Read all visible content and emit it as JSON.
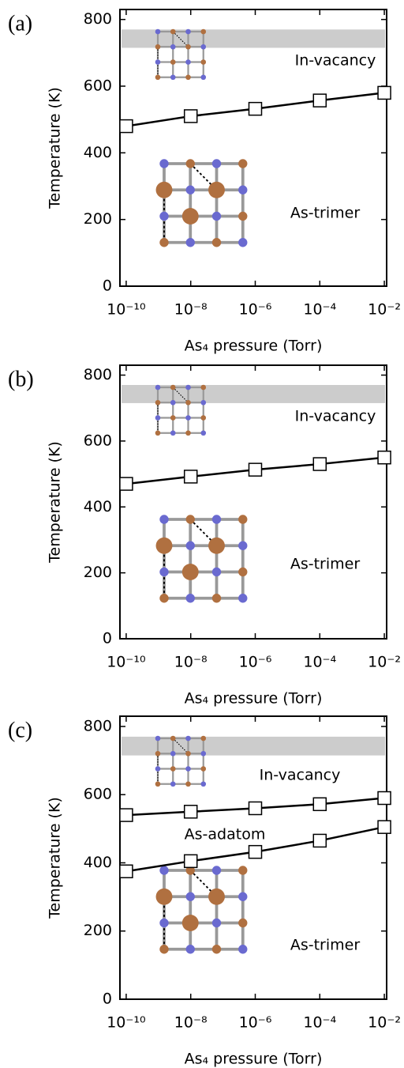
{
  "chart_data": [
    {
      "type": "line",
      "title": "(a)",
      "xlabel": "As₄ pressure (Torr)",
      "ylabel": "Temperature (K)",
      "xscale": "log",
      "x": [
        1e-10,
        1e-08,
        1e-06,
        0.0001,
        0.01
      ],
      "series": [
        {
          "color": "#000000",
          "values": [
            480,
            510,
            532,
            557,
            580
          ]
        }
      ],
      "xlim": [
        6.4e-11,
        0.0118
      ],
      "ylim": [
        0,
        830
      ],
      "xticks": [
        {
          "value": 1e-10,
          "label": "10⁻¹⁰"
        },
        {
          "value": 1e-08,
          "label": "10⁻⁸"
        },
        {
          "value": 1e-06,
          "label": "10⁻⁶"
        },
        {
          "value": 0.0001,
          "label": "10⁻⁴"
        },
        {
          "value": 0.01,
          "label": "10⁻²"
        }
      ],
      "yticks": [
        0,
        200,
        400,
        600,
        800
      ],
      "shaded_band": [
        715,
        770
      ],
      "band_color": "#cccccc",
      "annotations": [
        "In-vacancy",
        "As-trimer"
      ]
    },
    {
      "type": "line",
      "title": "(b)",
      "xlabel": "As₄ pressure (Torr)",
      "ylabel": "Temperature (K)",
      "xscale": "log",
      "x": [
        1e-10,
        1e-08,
        1e-06,
        0.0001,
        0.01
      ],
      "series": [
        {
          "color": "#000000",
          "values": [
            470,
            492,
            513,
            530,
            550
          ]
        }
      ],
      "xlim": [
        6.4e-11,
        0.0118
      ],
      "ylim": [
        0,
        830
      ],
      "xticks": [
        {
          "value": 1e-10,
          "label": "10⁻¹⁰"
        },
        {
          "value": 1e-08,
          "label": "10⁻⁸"
        },
        {
          "value": 1e-06,
          "label": "10⁻⁶"
        },
        {
          "value": 0.0001,
          "label": "10⁻⁴"
        },
        {
          "value": 0.01,
          "label": "10⁻²"
        }
      ],
      "yticks": [
        0,
        200,
        400,
        600,
        800
      ],
      "shaded_band": [
        715,
        770
      ],
      "band_color": "#cccccc",
      "annotations": [
        "In-vacancy",
        "As-trimer"
      ]
    },
    {
      "type": "line",
      "title": "(c)",
      "xlabel": "As₄ pressure (Torr)",
      "ylabel": "Temperature (K)",
      "xscale": "log",
      "x": [
        1e-10,
        1e-08,
        1e-06,
        0.0001,
        0.01
      ],
      "series": [
        {
          "color": "#000000",
          "values": [
            540,
            550,
            560,
            572,
            590
          ]
        },
        {
          "color": "#000000",
          "values": [
            375,
            405,
            432,
            465,
            505
          ]
        }
      ],
      "xlim": [
        6.4e-11,
        0.0118
      ],
      "ylim": [
        0,
        830
      ],
      "xticks": [
        {
          "value": 1e-10,
          "label": "10⁻¹⁰"
        },
        {
          "value": 1e-08,
          "label": "10⁻⁸"
        },
        {
          "value": 1e-06,
          "label": "10⁻⁶"
        },
        {
          "value": 0.0001,
          "label": "10⁻⁴"
        },
        {
          "value": 0.01,
          "label": "10⁻²"
        }
      ],
      "yticks": [
        0,
        200,
        400,
        600,
        800
      ],
      "shaded_band": [
        715,
        770
      ],
      "band_color": "#cccccc",
      "annotations": [
        "In-vacancy",
        "As-adatom",
        "As-trimer"
      ]
    }
  ]
}
